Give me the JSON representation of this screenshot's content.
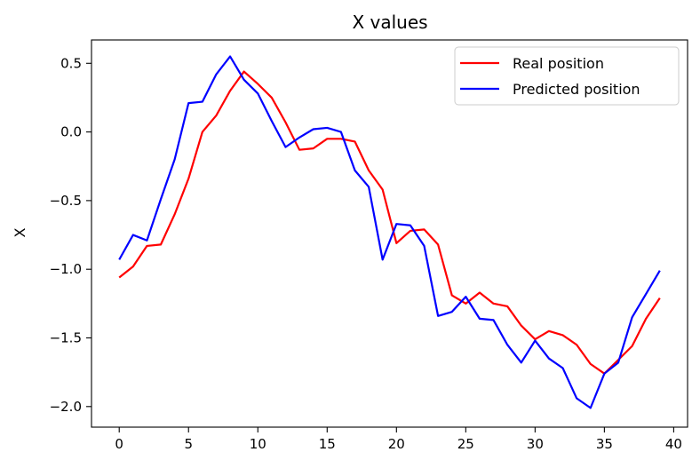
{
  "chart_data": {
    "type": "line",
    "title": "X values",
    "xlabel": "",
    "ylabel": "X",
    "xlim": [
      -2,
      41
    ],
    "ylim": [
      -2.15,
      0.67
    ],
    "xticks": [
      0,
      5,
      10,
      15,
      20,
      25,
      30,
      35,
      40
    ],
    "yticks": [
      0.5,
      0.0,
      -0.5,
      -1.0,
      -1.5,
      -2.0
    ],
    "ytick_labels": [
      "0.5",
      "0.0",
      "−0.5",
      "−1.0",
      "−1.5",
      "−2.0"
    ],
    "grid": false,
    "legend_position": "top-right",
    "x": [
      0,
      1,
      2,
      3,
      4,
      5,
      6,
      7,
      8,
      9,
      10,
      11,
      12,
      13,
      14,
      15,
      16,
      17,
      18,
      19,
      20,
      21,
      22,
      23,
      24,
      25,
      26,
      27,
      28,
      29,
      30,
      31,
      32,
      33,
      34,
      35,
      36,
      37,
      38,
      39
    ],
    "series": [
      {
        "name": "Real position",
        "color": "#ff0000",
        "values": [
          -1.06,
          -0.98,
          -0.83,
          -0.82,
          -0.6,
          -0.34,
          0.0,
          0.12,
          0.3,
          0.44,
          0.35,
          0.25,
          0.07,
          -0.13,
          -0.12,
          -0.05,
          -0.05,
          -0.07,
          -0.28,
          -0.42,
          -0.81,
          -0.72,
          -0.71,
          -0.82,
          -1.19,
          -1.25,
          -1.17,
          -1.25,
          -1.27,
          -1.41,
          -1.51,
          -1.45,
          -1.48,
          -1.55,
          -1.69,
          -1.76,
          -1.66,
          -1.56,
          -1.36,
          -1.21
        ]
      },
      {
        "name": "Predicted position",
        "color": "#0000ff",
        "values": [
          -0.93,
          -0.75,
          -0.79,
          -0.49,
          -0.2,
          0.21,
          0.22,
          0.42,
          0.55,
          0.38,
          0.28,
          0.08,
          -0.11,
          -0.04,
          0.02,
          0.03,
          0.0,
          -0.28,
          -0.4,
          -0.93,
          -0.67,
          -0.68,
          -0.83,
          -1.34,
          -1.31,
          -1.2,
          -1.36,
          -1.37,
          -1.55,
          -1.68,
          -1.52,
          -1.65,
          -1.72,
          -1.94,
          -2.01,
          -1.76,
          -1.68,
          -1.35,
          -1.18,
          -1.01
        ]
      }
    ]
  }
}
